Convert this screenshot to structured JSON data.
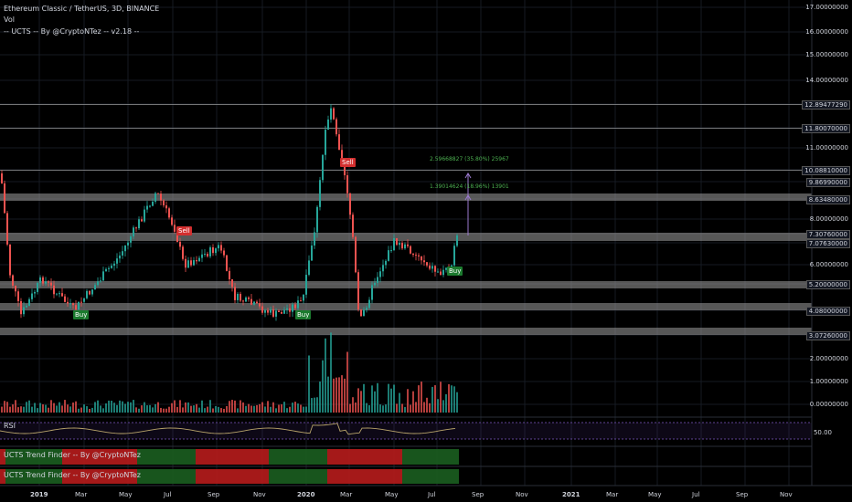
{
  "header": {
    "symbol_line": "Ethereum Classic / TetherUS, 3D, BINANCE",
    "volume_label": "Vol",
    "indicator_line": "-- UCTS -- By @CryptoNTez -- v2.18 --"
  },
  "price_axis": [
    "17.00000000",
    "16.00000000",
    "15.00000000",
    "14.00000000",
    "12.89477290",
    "11.80070000",
    "11.00000000",
    "10.08810000",
    "9.86990000",
    "8.63480000",
    "8.00000000",
    "7.30760000",
    "7.07630000",
    "6.00000000",
    "5.20000000",
    "4.08000000",
    "3.07260000",
    "2.00000000",
    "1.00000000",
    "0.00000000"
  ],
  "time_axis": [
    "2019",
    "Mar",
    "May",
    "Jul",
    "Sep",
    "Nov",
    "2020",
    "Mar",
    "May",
    "Jul",
    "Sep",
    "Nov",
    "2021",
    "Mar",
    "May",
    "Jul",
    "Sep",
    "Nov"
  ],
  "signals": [
    {
      "label": "Sell",
      "color": "#d32f2f"
    },
    {
      "label": "Sell",
      "color": "#d32f2f"
    },
    {
      "label": "Buy",
      "color": "#1b7a2e"
    },
    {
      "label": "Buy",
      "color": "#1b7a2e"
    },
    {
      "label": "Buy",
      "color": "#1b7a2e"
    }
  ],
  "measure": {
    "top_text": "2.59668827 (35.80%) 25967",
    "bottom_text": "1.39014624 (18.96%) 13901",
    "color": "#4caf50"
  },
  "rsi": {
    "label": "RSI",
    "value_label": "50.00"
  },
  "trend_finder": [
    {
      "label": "UCTS Trend Finder -- By @CryptoNTez"
    },
    {
      "label": "UCTS Trend Finder -- By @CryptoNTez"
    }
  ],
  "colors": {
    "up": "#26a69a",
    "down": "#ef5350",
    "zone": "#9e9e9e",
    "rsi_line": "#b8a46a",
    "rsi_band": "#7e57c2"
  }
}
